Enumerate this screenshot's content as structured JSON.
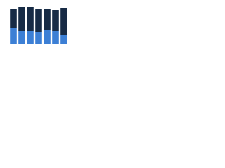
{
  "chart_data": {
    "type": "bar",
    "stacked": true,
    "categories": [
      null,
      null,
      null,
      null,
      null,
      null,
      null
    ],
    "series": [
      {
        "color": "#3c7fd5",
        "values": [
          23,
          19,
          19,
          17,
          20,
          19,
          13
        ]
      },
      {
        "color": "#172b45",
        "values": [
          27,
          34,
          34,
          33,
          30,
          30,
          39
        ]
      }
    ],
    "ylim": [
      0,
      55
    ]
  }
}
